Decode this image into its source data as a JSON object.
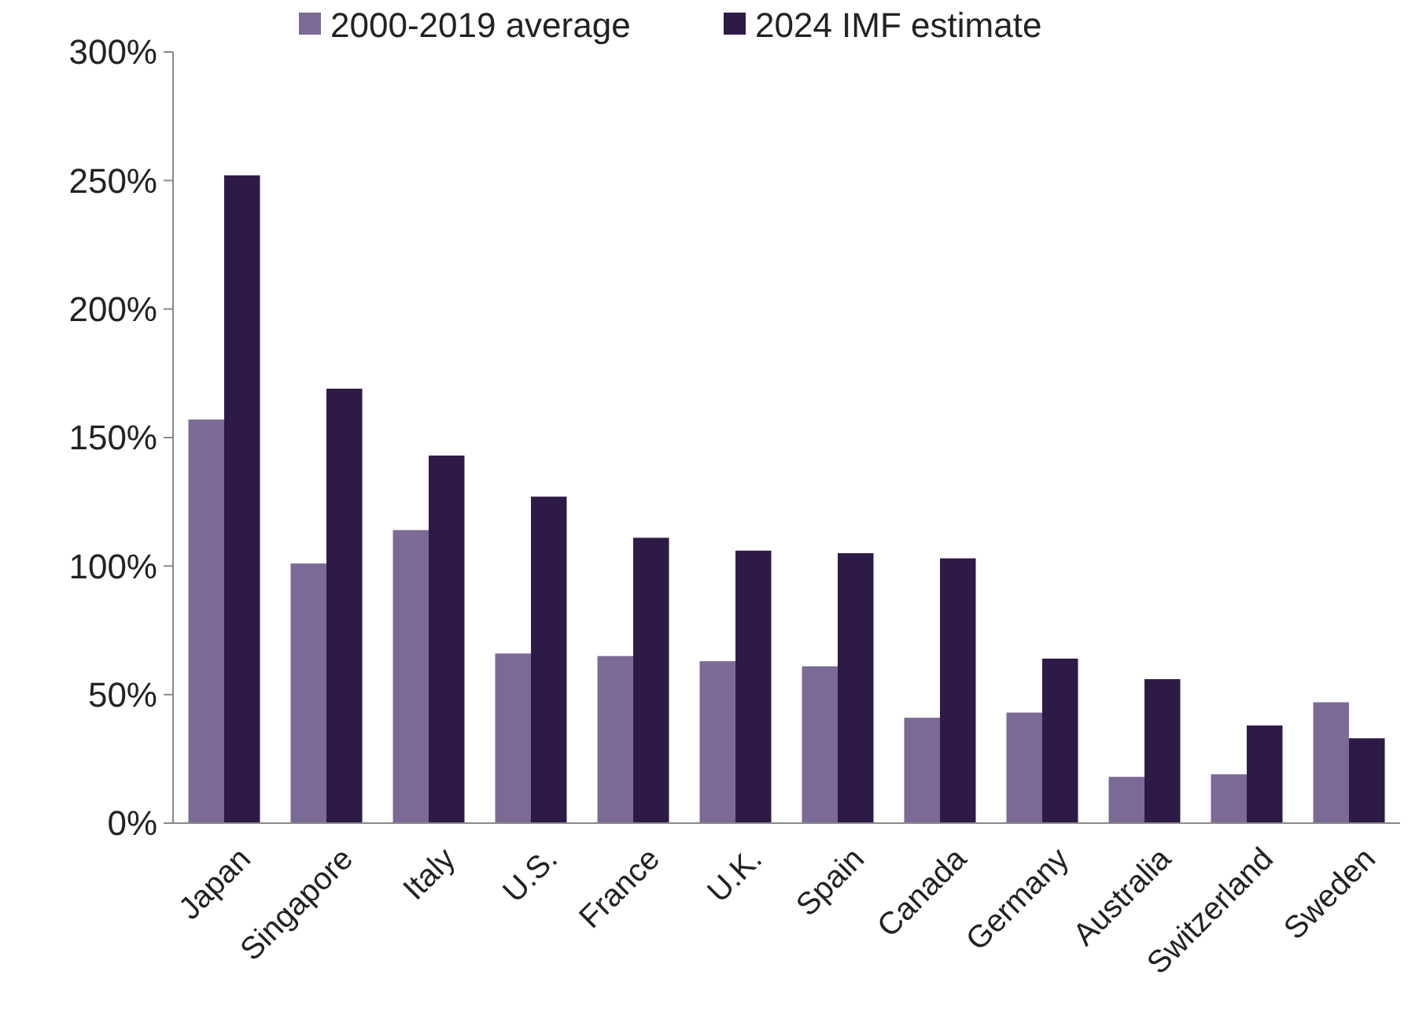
{
  "chart_data": {
    "type": "bar",
    "categories": [
      "Japan",
      "Singapore",
      "Italy",
      "U.S.",
      "France",
      "U.K.",
      "Spain",
      "Canada",
      "Germany",
      "Australia",
      "Switzerland",
      "Sweden"
    ],
    "series": [
      {
        "name": "2000-2019 average",
        "color": "#7b6a96",
        "values": [
          157,
          101,
          114,
          66,
          65,
          63,
          61,
          41,
          43,
          18,
          19,
          47
        ]
      },
      {
        "name": "2024 IMF estimate",
        "color": "#2e1a47",
        "values": [
          252,
          169,
          143,
          127,
          111,
          106,
          105,
          103,
          64,
          56,
          38,
          33
        ]
      }
    ],
    "ylim": [
      0,
      300
    ],
    "yticks": [
      {
        "value": 0,
        "label": "0%"
      },
      {
        "value": 50,
        "label": "50%"
      },
      {
        "value": 100,
        "label": "100%"
      },
      {
        "value": 150,
        "label": "150%"
      },
      {
        "value": 200,
        "label": "200%"
      },
      {
        "value": 250,
        "label": "250%"
      },
      {
        "value": 300,
        "label": "300%"
      }
    ],
    "grid": false,
    "legend": "top"
  }
}
